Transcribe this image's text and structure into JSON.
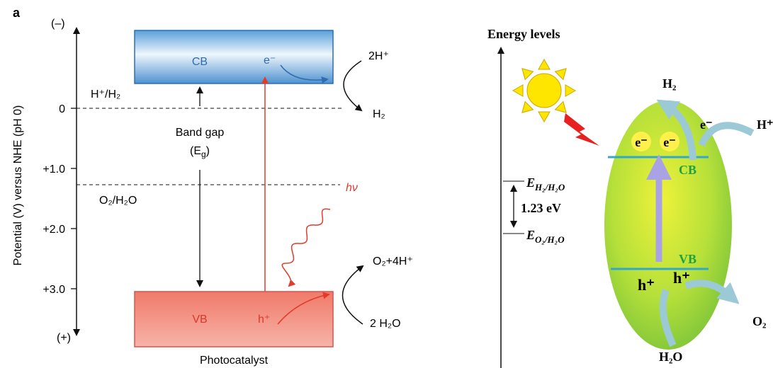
{
  "left_panel": {
    "panel_label": "a",
    "y_axis": {
      "title": "Potential (V) versus NHE (pH 0)",
      "top_label": "(–)",
      "bottom_label": "(+)",
      "ticks": [
        "0",
        "+1.0",
        "+2.0",
        "+3.0"
      ]
    },
    "conduction_band": {
      "label": "CB",
      "carrier": "e⁻"
    },
    "valence_band": {
      "label": "VB",
      "carrier": "h⁺"
    },
    "reduction": {
      "reactant": "2H⁺",
      "product": "H₂",
      "potential_label": "H⁺/H₂"
    },
    "oxidation": {
      "product": "O₂+4H⁺",
      "reactant": "2 H₂O",
      "potential_label": "O₂/H₂O"
    },
    "band_gap": {
      "label": "Band gap",
      "symbol_parts": [
        "(E",
        "g",
        ")"
      ]
    },
    "light": "hν",
    "caption": "Photocatalyst"
  },
  "right_panel": {
    "title": "Energy levels",
    "cb": "CB",
    "vb": "VB",
    "electrons": [
      "e⁻",
      "e⁻"
    ],
    "holes": [
      "h⁺",
      "h⁺"
    ],
    "h2_potential": [
      "E",
      "H₂/H₂O"
    ],
    "gap": "1.23 eV",
    "o2_potential": [
      "E",
      "O₂/H₂O"
    ],
    "reduction": {
      "product": "H₂",
      "electron": "e⁻",
      "reactant": "H⁺"
    },
    "oxidation": {
      "product": "O₂",
      "reactant": "H₂O"
    }
  }
}
